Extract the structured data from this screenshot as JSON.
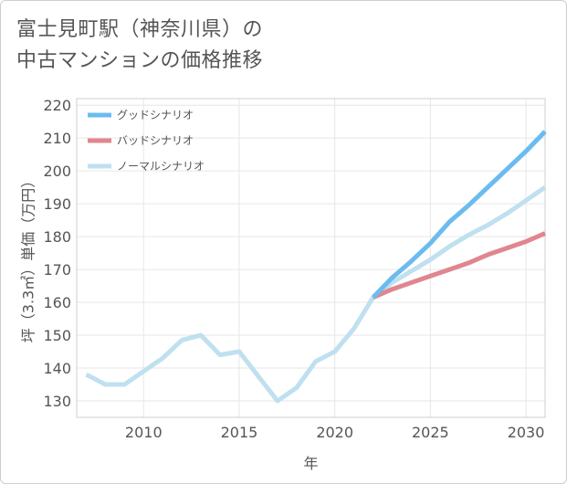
{
  "chart_data": {
    "type": "line",
    "title_line1": "富士見町駅（神奈川県）の",
    "title_line2": "中古マンションの価格推移",
    "xlabel": "年",
    "ylabel": "坪（3.3㎡）単価（万円）",
    "xlim": [
      2006.5,
      2031
    ],
    "ylim": [
      125,
      222
    ],
    "x_ticks": [
      2010,
      2015,
      2020,
      2025,
      2030
    ],
    "x_tick_labels": [
      "2010",
      "2015",
      "2020",
      "2025",
      "2030"
    ],
    "y_ticks": [
      130,
      140,
      150,
      160,
      170,
      180,
      190,
      200,
      210,
      220
    ],
    "y_tick_labels": [
      "130",
      "140",
      "150",
      "160",
      "170",
      "180",
      "190",
      "200",
      "210",
      "220"
    ],
    "grid": true,
    "legend_position": "top-left",
    "series": [
      {
        "name": "グッドシナリオ",
        "color": "#6bbcee",
        "x": [
          2022,
          2023,
          2024,
          2025,
          2026,
          2027,
          2028,
          2029,
          2030,
          2031
        ],
        "values": [
          161.5,
          167.5,
          172.5,
          178,
          184.5,
          189.5,
          195,
          200.5,
          206,
          212
        ]
      },
      {
        "name": "バッドシナリオ",
        "color": "#e0868f",
        "x": [
          2022,
          2023,
          2024,
          2025,
          2026,
          2027,
          2028,
          2029,
          2030,
          2031
        ],
        "values": [
          161.5,
          164,
          166,
          168,
          170,
          172,
          174.5,
          176.5,
          178.5,
          181
        ]
      },
      {
        "name": "ノーマルシナリオ",
        "color": "#bfe0ef",
        "x": [
          2007,
          2008,
          2009,
          2010,
          2011,
          2012,
          2013,
          2014,
          2015,
          2016,
          2017,
          2018,
          2019,
          2020,
          2021,
          2022,
          2023,
          2024,
          2025,
          2026,
          2027,
          2028,
          2029,
          2030,
          2031
        ],
        "values": [
          138,
          135,
          135,
          139,
          143,
          148.5,
          150,
          144,
          145,
          137.5,
          130,
          134,
          142,
          145,
          152,
          161.5,
          166,
          169.5,
          173,
          177,
          180.5,
          183.5,
          187,
          191,
          195
        ]
      }
    ]
  }
}
